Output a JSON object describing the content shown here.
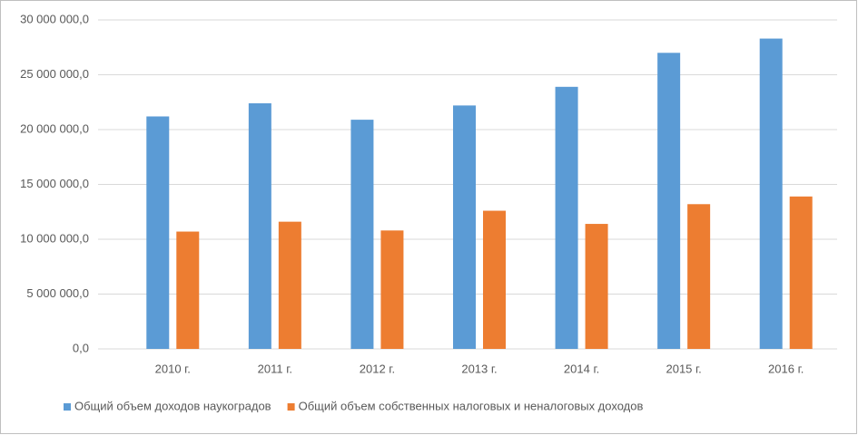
{
  "chart_data": {
    "type": "bar",
    "categories": [
      "2010 г.",
      "2011 г.",
      "2012 г.",
      "2013 г.",
      "2014 г.",
      "2015 г.",
      "2016 г."
    ],
    "series": [
      {
        "name": "Общий  объем доходов наукоградов",
        "color": "#5b9bd5",
        "values": [
          21200000,
          22400000,
          20900000,
          22200000,
          23900000,
          27000000,
          28300000
        ]
      },
      {
        "name": "Общий  объем собственных налоговых и неналоговых доходов",
        "color": "#ed7d31",
        "values": [
          10700000,
          11600000,
          10800000,
          12600000,
          11400000,
          13200000,
          13900000
        ]
      }
    ],
    "ylim": [
      0,
      30000000
    ],
    "yticks": [
      {
        "value": 0,
        "label": "0,0"
      },
      {
        "value": 5000000,
        "label": "5 000 000,0"
      },
      {
        "value": 10000000,
        "label": "10 000 000,0"
      },
      {
        "value": 15000000,
        "label": "15 000 000,0"
      },
      {
        "value": 20000000,
        "label": "20 000 000,0"
      },
      {
        "value": 25000000,
        "label": "25 000 000,0"
      },
      {
        "value": 30000000,
        "label": "30 000 000,0"
      }
    ],
    "grid": true
  }
}
